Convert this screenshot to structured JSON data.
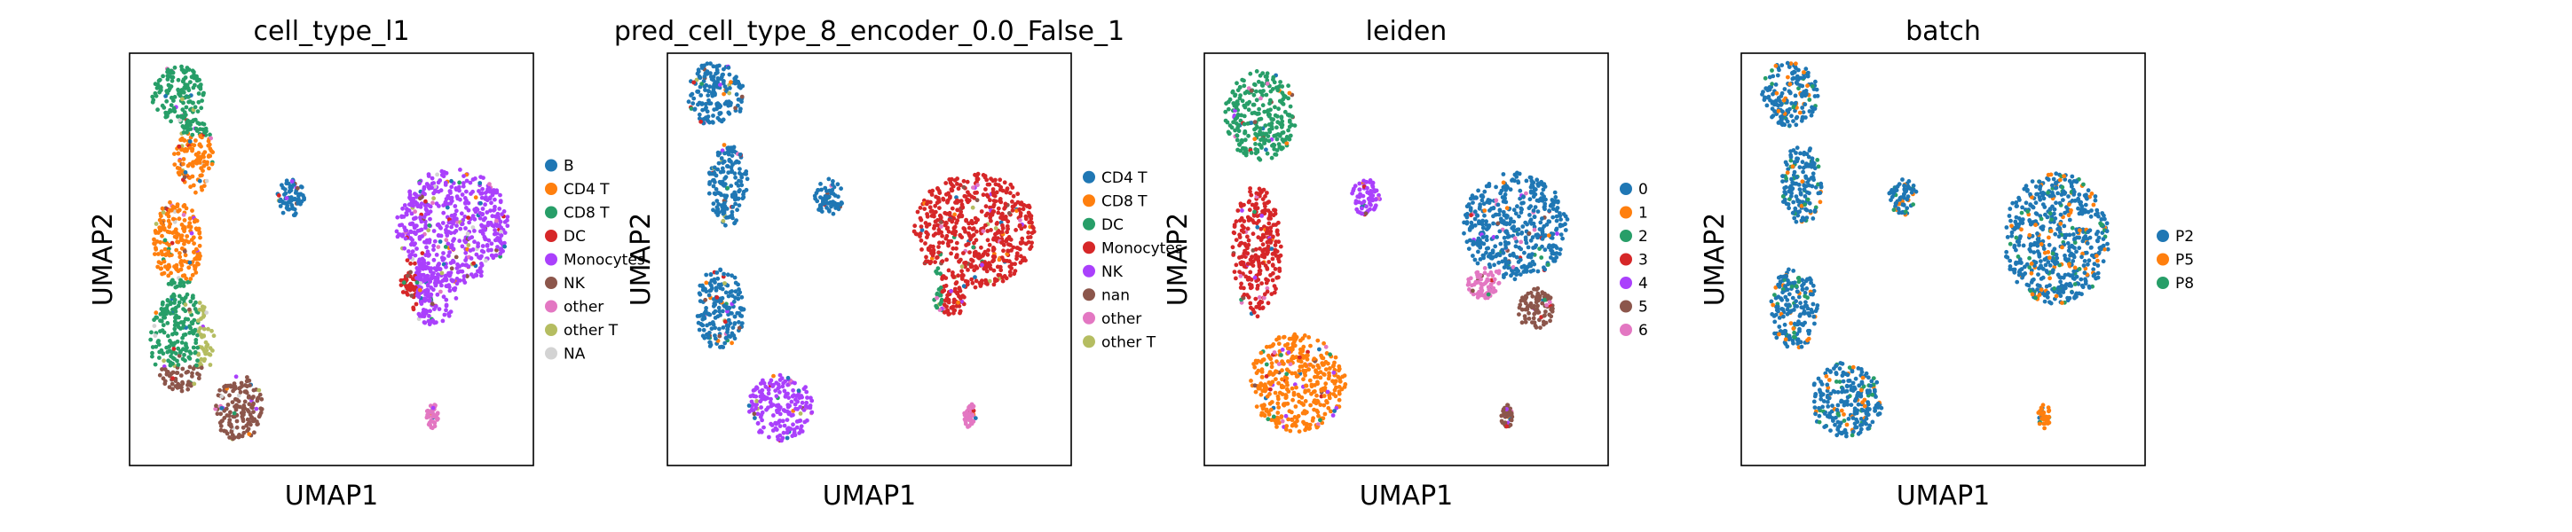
{
  "figure": {
    "panels": [
      {
        "title": "cell_type_l1",
        "xlabel": "UMAP1",
        "ylabel": "UMAP2",
        "legend": [
          {
            "label": "B",
            "color": "#1f77b4"
          },
          {
            "label": "CD4 T",
            "color": "#ff7f0e"
          },
          {
            "label": "CD8 T",
            "color": "#279e68"
          },
          {
            "label": "DC",
            "color": "#d62728"
          },
          {
            "label": "Monocytes",
            "color": "#aa40fc"
          },
          {
            "label": "NK",
            "color": "#8c564b"
          },
          {
            "label": "other",
            "color": "#e377c2"
          },
          {
            "label": "other T",
            "color": "#b5bd61"
          },
          {
            "label": "NA",
            "color": "#d3d3d3"
          }
        ]
      },
      {
        "title": "pred_cell_type_8_encoder_0.0_False_1",
        "xlabel": "UMAP1",
        "ylabel": "UMAP2",
        "legend": [
          {
            "label": "CD4 T",
            "color": "#1f77b4"
          },
          {
            "label": "CD8 T",
            "color": "#ff7f0e"
          },
          {
            "label": "DC",
            "color": "#279e68"
          },
          {
            "label": "Monocytes",
            "color": "#d62728"
          },
          {
            "label": "NK",
            "color": "#aa40fc"
          },
          {
            "label": "nan",
            "color": "#8c564b"
          },
          {
            "label": "other",
            "color": "#e377c2"
          },
          {
            "label": "other T",
            "color": "#b5bd61"
          }
        ]
      },
      {
        "title": "leiden",
        "xlabel": "UMAP1",
        "ylabel": "UMAP2",
        "legend": [
          {
            "label": "0",
            "color": "#1f77b4"
          },
          {
            "label": "1",
            "color": "#ff7f0e"
          },
          {
            "label": "2",
            "color": "#279e68"
          },
          {
            "label": "3",
            "color": "#d62728"
          },
          {
            "label": "4",
            "color": "#aa40fc"
          },
          {
            "label": "5",
            "color": "#8c564b"
          },
          {
            "label": "6",
            "color": "#e377c2"
          }
        ]
      },
      {
        "title": "batch",
        "xlabel": "UMAP1",
        "ylabel": "UMAP2",
        "legend": [
          {
            "label": "P2",
            "color": "#1f77b4"
          },
          {
            "label": "P5",
            "color": "#ff7f0e"
          },
          {
            "label": "P8",
            "color": "#279e68"
          }
        ]
      }
    ]
  },
  "chart_data": [
    {
      "type": "scatter",
      "title": "cell_type_l1",
      "xlabel": "UMAP1",
      "ylabel": "UMAP2",
      "ticks": "none",
      "legend_position": "right",
      "series": [
        {
          "name": "B",
          "color": "#1f77b4"
        },
        {
          "name": "CD4 T",
          "color": "#ff7f0e"
        },
        {
          "name": "CD8 T",
          "color": "#279e68"
        },
        {
          "name": "DC",
          "color": "#d62728"
        },
        {
          "name": "Monocytes",
          "color": "#aa40fc"
        },
        {
          "name": "NK",
          "color": "#8c564b"
        },
        {
          "name": "other",
          "color": "#e377c2"
        },
        {
          "name": "other T",
          "color": "#b5bd61"
        },
        {
          "name": "NA",
          "color": "#d3d3d3"
        }
      ]
    },
    {
      "type": "scatter",
      "title": "pred_cell_type_8_encoder_0.0_False_1",
      "xlabel": "UMAP1",
      "ylabel": "UMAP2",
      "ticks": "none",
      "legend_position": "right",
      "series": [
        {
          "name": "CD4 T",
          "color": "#1f77b4"
        },
        {
          "name": "CD8 T",
          "color": "#ff7f0e"
        },
        {
          "name": "DC",
          "color": "#279e68"
        },
        {
          "name": "Monocytes",
          "color": "#d62728"
        },
        {
          "name": "NK",
          "color": "#aa40fc"
        },
        {
          "name": "nan",
          "color": "#8c564b"
        },
        {
          "name": "other",
          "color": "#e377c2"
        },
        {
          "name": "other T",
          "color": "#b5bd61"
        }
      ]
    },
    {
      "type": "scatter",
      "title": "leiden",
      "xlabel": "UMAP1",
      "ylabel": "UMAP2",
      "ticks": "none",
      "legend_position": "right",
      "series": [
        {
          "name": "0",
          "color": "#1f77b4"
        },
        {
          "name": "1",
          "color": "#ff7f0e"
        },
        {
          "name": "2",
          "color": "#279e68"
        },
        {
          "name": "3",
          "color": "#d62728"
        },
        {
          "name": "4",
          "color": "#aa40fc"
        },
        {
          "name": "5",
          "color": "#8c564b"
        },
        {
          "name": "6",
          "color": "#e377c2"
        }
      ]
    },
    {
      "type": "scatter",
      "title": "batch",
      "xlabel": "UMAP1",
      "ylabel": "UMAP2",
      "ticks": "none",
      "legend_position": "right",
      "series": [
        {
          "name": "P2",
          "color": "#1f77b4"
        },
        {
          "name": "P5",
          "color": "#ff7f0e"
        },
        {
          "name": "P8",
          "color": "#279e68"
        }
      ]
    }
  ]
}
